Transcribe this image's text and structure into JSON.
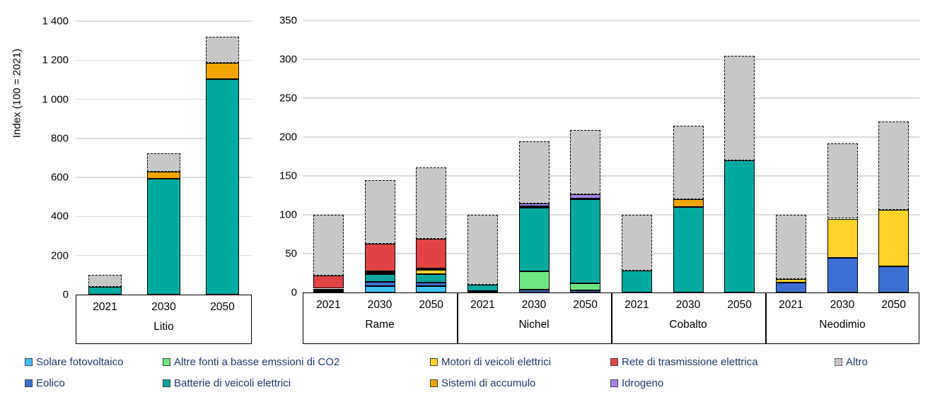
{
  "colors": {
    "solare": "#3EC1F0",
    "eolico": "#3E6FD3",
    "altre": "#6FE483",
    "batterie": "#00A99D",
    "motori": "#FFD32B",
    "sistemi": "#F0A500",
    "rete": "#E04345",
    "idrogeno": "#A585EA",
    "altro": "#C7C7C7",
    "gridline": "#DCDCDC",
    "legend_text": "#1F3864"
  },
  "legend": {
    "position": "bottom",
    "items": [
      {
        "key": "solare",
        "label": "Solare fotovoltaico",
        "col": 0,
        "row": 0
      },
      {
        "key": "eolico",
        "label": "Eolico",
        "col": 0,
        "row": 1
      },
      {
        "key": "altre",
        "label": "Altre fonti a basse emssioni di CO2",
        "col": 1,
        "row": 0
      },
      {
        "key": "batterie",
        "label": "Batterie di veicoli elettrici",
        "col": 1,
        "row": 1
      },
      {
        "key": "motori",
        "label": "Motori di veicoli elettrici",
        "col": 2,
        "row": 0
      },
      {
        "key": "sistemi",
        "label": "Sistemi di accumulo",
        "col": 2,
        "row": 1
      },
      {
        "key": "rete",
        "label": "Rete di trasmissione elettrica",
        "col": 3,
        "row": 0
      },
      {
        "key": "idrogeno",
        "label": "Idrogeno",
        "col": 3,
        "row": 1
      },
      {
        "key": "altro",
        "label": "Altro",
        "col": 4,
        "row": 0
      }
    ]
  },
  "chart_data": [
    {
      "type": "bar",
      "stacked": true,
      "ylabel": "Index (100 = 2021)",
      "ylim": [
        0,
        1400
      ],
      "ytick_step": 200,
      "ytick_labels": [
        "0",
        "200",
        "400",
        "600",
        "800",
        "1 000",
        "1 200",
        "1 400"
      ],
      "grid": true,
      "stack_order": [
        "solare",
        "eolico",
        "altre",
        "batterie",
        "motori",
        "sistemi",
        "rete",
        "idrogeno",
        "altro"
      ],
      "groups": [
        {
          "label": "Litio",
          "categories": [
            "2021",
            "2030",
            "2050"
          ],
          "bars": [
            {
              "category": "2021",
              "segments": [
                {
                  "key": "batterie",
                  "value": 40
                },
                {
                  "key": "altro",
                  "value": 60
                }
              ]
            },
            {
              "category": "2030",
              "segments": [
                {
                  "key": "batterie",
                  "value": 595
                },
                {
                  "key": "sistemi",
                  "value": 35
                },
                {
                  "key": "altro",
                  "value": 95
                }
              ]
            },
            {
              "category": "2050",
              "segments": [
                {
                  "key": "batterie",
                  "value": 1105
                },
                {
                  "key": "sistemi",
                  "value": 80
                },
                {
                  "key": "altro",
                  "value": 135
                }
              ]
            }
          ]
        }
      ]
    },
    {
      "type": "bar",
      "stacked": true,
      "ylabel": "",
      "ylim": [
        0,
        350
      ],
      "ytick_step": 50,
      "ytick_labels": [
        "0",
        "50",
        "100",
        "150",
        "200",
        "250",
        "300",
        "350"
      ],
      "grid": true,
      "stack_order": [
        "solare",
        "eolico",
        "altre",
        "batterie",
        "motori",
        "sistemi",
        "rete",
        "idrogeno",
        "altro"
      ],
      "groups": [
        {
          "label": "Rame",
          "categories": [
            "2021",
            "2030",
            "2050"
          ],
          "bars": [
            {
              "category": "2021",
              "segments": [
                {
                  "key": "solare",
                  "value": 1.5
                },
                {
                  "key": "eolico",
                  "value": 2.5
                },
                {
                  "key": "batterie",
                  "value": 1
                },
                {
                  "key": "rete",
                  "value": 17
                },
                {
                  "key": "altro",
                  "value": 78
                }
              ]
            },
            {
              "category": "2030",
              "segments": [
                {
                  "key": "solare",
                  "value": 8
                },
                {
                  "key": "eolico",
                  "value": 6
                },
                {
                  "key": "batterie",
                  "value": 10
                },
                {
                  "key": "motori",
                  "value": 1.5
                },
                {
                  "key": "sistemi",
                  "value": 1.5
                },
                {
                  "key": "rete",
                  "value": 36
                },
                {
                  "key": "altro",
                  "value": 82
                }
              ]
            },
            {
              "category": "2050",
              "segments": [
                {
                  "key": "solare",
                  "value": 8
                },
                {
                  "key": "eolico",
                  "value": 5
                },
                {
                  "key": "batterie",
                  "value": 11
                },
                {
                  "key": "motori",
                  "value": 5
                },
                {
                  "key": "sistemi",
                  "value": 2
                },
                {
                  "key": "rete",
                  "value": 38
                },
                {
                  "key": "altro",
                  "value": 92
                }
              ]
            }
          ]
        },
        {
          "label": "Nichel",
          "categories": [
            "2021",
            "2030",
            "2050"
          ],
          "bars": [
            {
              "category": "2021",
              "segments": [
                {
                  "key": "altre",
                  "value": 2
                },
                {
                  "key": "batterie",
                  "value": 8
                },
                {
                  "key": "altro",
                  "value": 90
                }
              ]
            },
            {
              "category": "2030",
              "segments": [
                {
                  "key": "eolico",
                  "value": 4
                },
                {
                  "key": "altre",
                  "value": 23
                },
                {
                  "key": "batterie",
                  "value": 82
                },
                {
                  "key": "sistemi",
                  "value": 2
                },
                {
                  "key": "idrogeno",
                  "value": 4
                },
                {
                  "key": "altro",
                  "value": 80
                }
              ]
            },
            {
              "category": "2050",
              "segments": [
                {
                  "key": "eolico",
                  "value": 3
                },
                {
                  "key": "altre",
                  "value": 9
                },
                {
                  "key": "batterie",
                  "value": 108
                },
                {
                  "key": "sistemi",
                  "value": 1
                },
                {
                  "key": "idrogeno",
                  "value": 5
                },
                {
                  "key": "altro",
                  "value": 83
                }
              ]
            }
          ]
        },
        {
          "label": "Cobalto",
          "categories": [
            "2021",
            "2030",
            "2050"
          ],
          "bars": [
            {
              "category": "2021",
              "segments": [
                {
                  "key": "batterie",
                  "value": 28
                },
                {
                  "key": "altro",
                  "value": 72
                }
              ]
            },
            {
              "category": "2030",
              "segments": [
                {
                  "key": "batterie",
                  "value": 110
                },
                {
                  "key": "sistemi",
                  "value": 10
                },
                {
                  "key": "altro",
                  "value": 95
                }
              ]
            },
            {
              "category": "2050",
              "segments": [
                {
                  "key": "batterie",
                  "value": 170
                },
                {
                  "key": "altro",
                  "value": 135
                }
              ]
            }
          ]
        },
        {
          "label": "Neodimio",
          "categories": [
            "2021",
            "2030",
            "2050"
          ],
          "bars": [
            {
              "category": "2021",
              "segments": [
                {
                  "key": "eolico",
                  "value": 13
                },
                {
                  "key": "motori",
                  "value": 4
                },
                {
                  "key": "altro",
                  "value": 83
                }
              ]
            },
            {
              "category": "2030",
              "segments": [
                {
                  "key": "eolico",
                  "value": 45
                },
                {
                  "key": "motori",
                  "value": 50
                },
                {
                  "key": "altro",
                  "value": 97
                }
              ]
            },
            {
              "category": "2050",
              "segments": [
                {
                  "key": "eolico",
                  "value": 34
                },
                {
                  "key": "motori",
                  "value": 72
                },
                {
                  "key": "altro",
                  "value": 114
                }
              ]
            }
          ]
        }
      ]
    }
  ]
}
